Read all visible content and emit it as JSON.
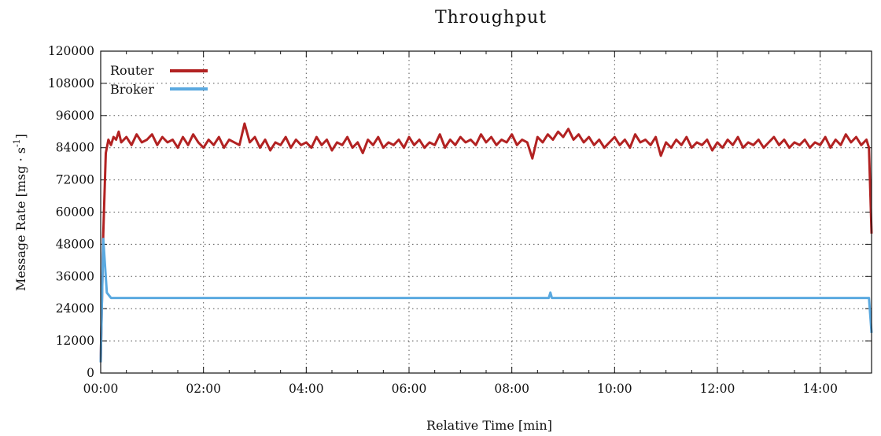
{
  "chart_data": {
    "type": "line",
    "title": "Throughput",
    "xlabel": "Relative Time [min]",
    "ylabel": "Message Rate [msg · s",
    "ylabel_sup": "-1",
    "ylabel_end": "]",
    "xlim": [
      0,
      15
    ],
    "ylim": [
      0,
      120000
    ],
    "x_ticks": [
      0,
      2,
      4,
      6,
      8,
      10,
      12,
      14
    ],
    "x_tick_labels": [
      "00:00",
      "02:00",
      "04:00",
      "06:00",
      "08:00",
      "10:00",
      "12:00",
      "14:00"
    ],
    "y_ticks": [
      0,
      12000,
      24000,
      36000,
      48000,
      60000,
      72000,
      84000,
      96000,
      108000,
      120000
    ],
    "y_tick_labels": [
      "0",
      "12000",
      "24000",
      "36000",
      "48000",
      "60000",
      "72000",
      "84000",
      "96000",
      "108000",
      "120000"
    ],
    "grid": true,
    "legend_position": "top-left",
    "series": [
      {
        "name": "Router",
        "color": "#b22222",
        "points": [
          [
            0.0,
            4000
          ],
          [
            0.05,
            52000
          ],
          [
            0.1,
            82000
          ],
          [
            0.15,
            87000
          ],
          [
            0.2,
            85000
          ],
          [
            0.25,
            88000
          ],
          [
            0.3,
            87000
          ],
          [
            0.35,
            90000
          ],
          [
            0.4,
            86000
          ],
          [
            0.5,
            88000
          ],
          [
            0.6,
            85000
          ],
          [
            0.7,
            89000
          ],
          [
            0.8,
            86000
          ],
          [
            0.9,
            87000
          ],
          [
            1.0,
            89000
          ],
          [
            1.1,
            85000
          ],
          [
            1.2,
            88000
          ],
          [
            1.3,
            86000
          ],
          [
            1.4,
            87000
          ],
          [
            1.5,
            84000
          ],
          [
            1.6,
            88000
          ],
          [
            1.7,
            85000
          ],
          [
            1.8,
            89000
          ],
          [
            1.9,
            86000
          ],
          [
            2.0,
            84000
          ],
          [
            2.1,
            87000
          ],
          [
            2.2,
            85000
          ],
          [
            2.3,
            88000
          ],
          [
            2.4,
            84000
          ],
          [
            2.5,
            87000
          ],
          [
            2.6,
            86000
          ],
          [
            2.7,
            85000
          ],
          [
            2.8,
            93000
          ],
          [
            2.9,
            86000
          ],
          [
            3.0,
            88000
          ],
          [
            3.1,
            84000
          ],
          [
            3.2,
            87000
          ],
          [
            3.3,
            83000
          ],
          [
            3.4,
            86000
          ],
          [
            3.5,
            85000
          ],
          [
            3.6,
            88000
          ],
          [
            3.7,
            84000
          ],
          [
            3.8,
            87000
          ],
          [
            3.9,
            85000
          ],
          [
            4.0,
            86000
          ],
          [
            4.1,
            84000
          ],
          [
            4.2,
            88000
          ],
          [
            4.3,
            85000
          ],
          [
            4.4,
            87000
          ],
          [
            4.5,
            83000
          ],
          [
            4.6,
            86000
          ],
          [
            4.7,
            85000
          ],
          [
            4.8,
            88000
          ],
          [
            4.9,
            84000
          ],
          [
            5.0,
            86000
          ],
          [
            5.1,
            82000
          ],
          [
            5.2,
            87000
          ],
          [
            5.3,
            85000
          ],
          [
            5.4,
            88000
          ],
          [
            5.5,
            84000
          ],
          [
            5.6,
            86000
          ],
          [
            5.7,
            85000
          ],
          [
            5.8,
            87000
          ],
          [
            5.9,
            84000
          ],
          [
            6.0,
            88000
          ],
          [
            6.1,
            85000
          ],
          [
            6.2,
            87000
          ],
          [
            6.3,
            84000
          ],
          [
            6.4,
            86000
          ],
          [
            6.5,
            85000
          ],
          [
            6.6,
            89000
          ],
          [
            6.7,
            84000
          ],
          [
            6.8,
            87000
          ],
          [
            6.9,
            85000
          ],
          [
            7.0,
            88000
          ],
          [
            7.1,
            86000
          ],
          [
            7.2,
            87000
          ],
          [
            7.3,
            85000
          ],
          [
            7.4,
            89000
          ],
          [
            7.5,
            86000
          ],
          [
            7.6,
            88000
          ],
          [
            7.7,
            85000
          ],
          [
            7.8,
            87000
          ],
          [
            7.9,
            86000
          ],
          [
            8.0,
            89000
          ],
          [
            8.1,
            85000
          ],
          [
            8.2,
            87000
          ],
          [
            8.3,
            86000
          ],
          [
            8.4,
            80000
          ],
          [
            8.5,
            88000
          ],
          [
            8.6,
            86000
          ],
          [
            8.7,
            89000
          ],
          [
            8.8,
            87000
          ],
          [
            8.9,
            90000
          ],
          [
            9.0,
            88000
          ],
          [
            9.1,
            91000
          ],
          [
            9.2,
            87000
          ],
          [
            9.3,
            89000
          ],
          [
            9.4,
            86000
          ],
          [
            9.5,
            88000
          ],
          [
            9.6,
            85000
          ],
          [
            9.7,
            87000
          ],
          [
            9.8,
            84000
          ],
          [
            9.9,
            86000
          ],
          [
            10.0,
            88000
          ],
          [
            10.1,
            85000
          ],
          [
            10.2,
            87000
          ],
          [
            10.3,
            84000
          ],
          [
            10.4,
            89000
          ],
          [
            10.5,
            86000
          ],
          [
            10.6,
            87000
          ],
          [
            10.7,
            85000
          ],
          [
            10.8,
            88000
          ],
          [
            10.9,
            81000
          ],
          [
            11.0,
            86000
          ],
          [
            11.1,
            84000
          ],
          [
            11.2,
            87000
          ],
          [
            11.3,
            85000
          ],
          [
            11.4,
            88000
          ],
          [
            11.5,
            84000
          ],
          [
            11.6,
            86000
          ],
          [
            11.7,
            85000
          ],
          [
            11.8,
            87000
          ],
          [
            11.9,
            83000
          ],
          [
            12.0,
            86000
          ],
          [
            12.1,
            84000
          ],
          [
            12.2,
            87000
          ],
          [
            12.3,
            85000
          ],
          [
            12.4,
            88000
          ],
          [
            12.5,
            84000
          ],
          [
            12.6,
            86000
          ],
          [
            12.7,
            85000
          ],
          [
            12.8,
            87000
          ],
          [
            12.9,
            84000
          ],
          [
            13.0,
            86000
          ],
          [
            13.1,
            88000
          ],
          [
            13.2,
            85000
          ],
          [
            13.3,
            87000
          ],
          [
            13.4,
            84000
          ],
          [
            13.5,
            86000
          ],
          [
            13.6,
            85000
          ],
          [
            13.7,
            87000
          ],
          [
            13.8,
            84000
          ],
          [
            13.9,
            86000
          ],
          [
            14.0,
            85000
          ],
          [
            14.1,
            88000
          ],
          [
            14.2,
            84000
          ],
          [
            14.3,
            87000
          ],
          [
            14.4,
            85000
          ],
          [
            14.5,
            89000
          ],
          [
            14.6,
            86000
          ],
          [
            14.7,
            88000
          ],
          [
            14.8,
            85000
          ],
          [
            14.9,
            87000
          ],
          [
            14.95,
            84000
          ],
          [
            15.0,
            52000
          ]
        ]
      },
      {
        "name": "Broker",
        "color": "#5aa9e0",
        "points": [
          [
            0.0,
            4000
          ],
          [
            0.05,
            50000
          ],
          [
            0.12,
            30000
          ],
          [
            0.2,
            28000
          ],
          [
            1.0,
            28000
          ],
          [
            2.0,
            28000
          ],
          [
            3.0,
            28000
          ],
          [
            4.0,
            28000
          ],
          [
            5.0,
            28000
          ],
          [
            6.0,
            28000
          ],
          [
            7.0,
            28000
          ],
          [
            8.0,
            28000
          ],
          [
            8.72,
            28000
          ],
          [
            8.75,
            30000
          ],
          [
            8.78,
            28000
          ],
          [
            9.0,
            28000
          ],
          [
            10.0,
            28000
          ],
          [
            11.0,
            28000
          ],
          [
            12.0,
            28000
          ],
          [
            13.0,
            28000
          ],
          [
            14.0,
            28000
          ],
          [
            14.95,
            28000
          ],
          [
            15.0,
            15000
          ]
        ]
      }
    ]
  }
}
